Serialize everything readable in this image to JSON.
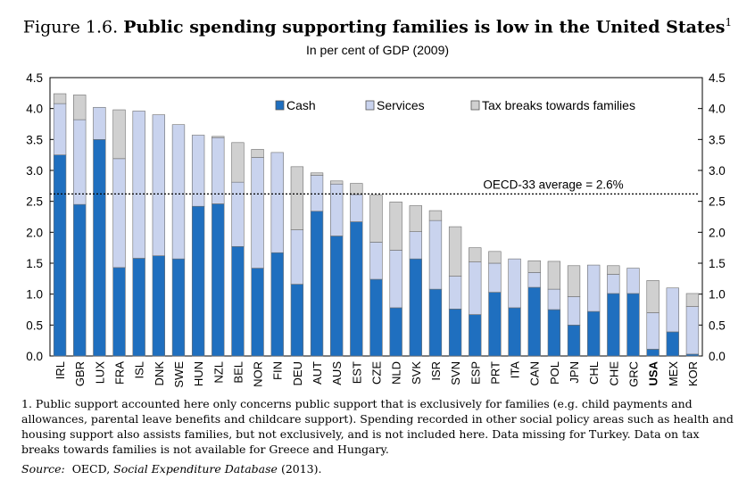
{
  "title": {
    "figure_label": "Figure 1.6.",
    "main": "Public spending supporting families is low in the United States",
    "footnote_mark": "1"
  },
  "subtitle": "In per cent of GDP (2009)",
  "colors": {
    "cash": "#1f6fbf",
    "services": "#c9d3ee",
    "tax": "#d0d0d0",
    "outline": "#6f6f6f"
  },
  "chart_data": {
    "type": "bar",
    "stacked": true,
    "categories": [
      "IRL",
      "GBR",
      "LUX",
      "FRA",
      "ISL",
      "DNK",
      "SWE",
      "HUN",
      "NZL",
      "BEL",
      "NOR",
      "FIN",
      "DEU",
      "AUT",
      "AUS",
      "EST",
      "CZE",
      "NLD",
      "SVK",
      "ISR",
      "SVN",
      "ESP",
      "PRT",
      "ITA",
      "CAN",
      "POL",
      "JPN",
      "CHL",
      "CHE",
      "GRC",
      "USA",
      "MEX",
      "KOR"
    ],
    "series": [
      {
        "name": "Cash",
        "key": "cash",
        "values": [
          3.25,
          2.45,
          3.5,
          1.43,
          1.58,
          1.62,
          1.57,
          2.42,
          2.46,
          1.77,
          1.42,
          1.67,
          1.16,
          2.34,
          1.94,
          2.17,
          1.24,
          0.78,
          1.57,
          1.08,
          0.76,
          0.67,
          1.03,
          0.78,
          1.11,
          0.75,
          0.5,
          0.72,
          1.01,
          1.01,
          0.11,
          0.39,
          0.03
        ]
      },
      {
        "name": "Services",
        "key": "services",
        "values": [
          0.83,
          1.37,
          0.52,
          1.76,
          2.38,
          2.28,
          2.17,
          1.15,
          1.07,
          1.04,
          1.79,
          1.62,
          0.88,
          0.58,
          0.84,
          0.44,
          0.6,
          0.93,
          0.44,
          1.11,
          0.53,
          0.85,
          0.47,
          0.79,
          0.24,
          0.33,
          0.46,
          0.75,
          0.31,
          0.41,
          0.59,
          0.71,
          0.77
        ]
      },
      {
        "name": "Tax breaks towards families",
        "key": "tax",
        "values": [
          0.16,
          0.4,
          0.0,
          0.79,
          0.0,
          0.0,
          0.0,
          0.0,
          0.02,
          0.64,
          0.13,
          0.0,
          1.02,
          0.04,
          0.05,
          0.18,
          0.76,
          0.78,
          0.42,
          0.16,
          0.8,
          0.23,
          0.19,
          0.0,
          0.19,
          0.45,
          0.5,
          0.0,
          0.14,
          0.0,
          0.52,
          0.0,
          0.21
        ]
      }
    ],
    "ylim": [
      0,
      4.5
    ],
    "yticks": [
      "0.0",
      "0.5",
      "1.0",
      "1.5",
      "2.0",
      "2.5",
      "3.0",
      "3.5",
      "4.0",
      "4.5"
    ],
    "reference_line": {
      "value": 2.62,
      "label": "OECD-33 average = 2.6%"
    },
    "highlight_category": "USA",
    "legend_position": "top",
    "grid": false,
    "xlabel": "",
    "ylabel": ""
  },
  "footnote": "1.  Public support accounted here only concerns public support that is exclusively for families (e.g. child payments and allowances, parental leave benefits and childcare support). Spending recorded in other social policy areas such as health and housing support also assists families, but not exclusively, and is not included here. Data missing for Turkey. Data on tax breaks towards families is not available for Greece and Hungary.",
  "source": {
    "prefix": "Source:",
    "org": "OECD,",
    "database": "Social Expenditure Database",
    "year": "(2013)."
  }
}
